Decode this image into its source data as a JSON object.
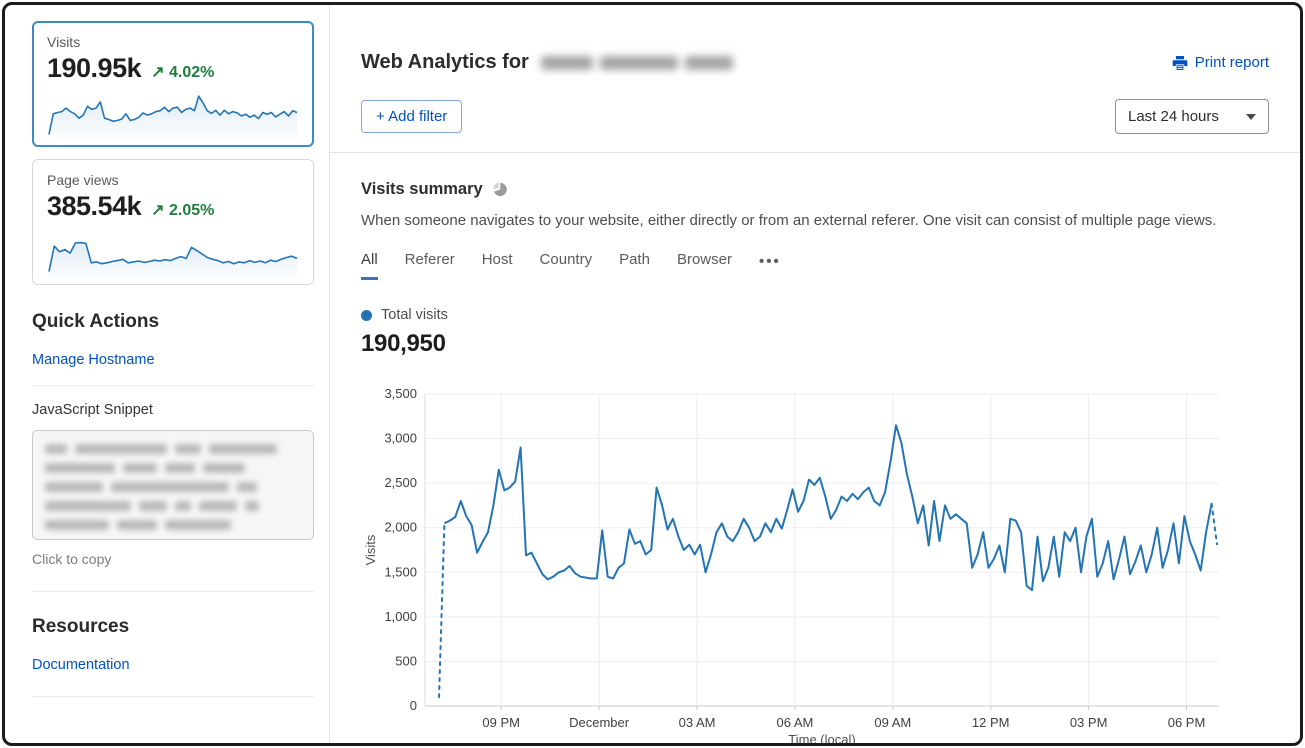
{
  "colors": {
    "accent_blue": "#0051c3",
    "chart_blue": "#2274b5",
    "trend_green": "#1f7d3d",
    "selected_card_border": "#3b8ac4"
  },
  "sidebar": {
    "cards": [
      {
        "label": "Visits",
        "value": "190.95k",
        "trend_arrow": "↗",
        "trend": "4.02%",
        "selected": true
      },
      {
        "label": "Page views",
        "value": "385.54k",
        "trend_arrow": "↗",
        "trend": "2.05%",
        "selected": false
      }
    ],
    "quick_actions": {
      "title": "Quick Actions",
      "manage_hostname_label": "Manage Hostname",
      "snippet_label": "JavaScript Snippet",
      "copy_hint": "Click to copy"
    },
    "resources": {
      "title": "Resources",
      "documentation_label": "Documentation"
    }
  },
  "header": {
    "title": "Web Analytics for",
    "print_label": "Print report",
    "add_filter_plus": "+",
    "add_filter_label": "Add filter",
    "time_range_value": "Last 24 hours"
  },
  "summary": {
    "title": "Visits summary",
    "description": "When someone navigates to your website, either directly or from an external referer. One visit can consist of multiple page views.",
    "tabs": [
      "All",
      "Referer",
      "Host",
      "Country",
      "Path",
      "Browser"
    ],
    "active_tab": "All",
    "more_label": "•••",
    "legend_label": "Total visits",
    "total_value": "190,950"
  },
  "chart_data": [
    {
      "id": "visits-timeseries",
      "type": "line",
      "title": "Total visits",
      "xlabel": "Time (local)",
      "ylabel": "Visits",
      "ylim": [
        0,
        3500
      ],
      "y_ticks": [
        0,
        500,
        1000,
        1500,
        2000,
        2500,
        3000,
        3500
      ],
      "x_tick_labels": [
        "09 PM",
        "December",
        "03 AM",
        "06 AM",
        "09 AM",
        "12 PM",
        "03 PM",
        "06 PM"
      ],
      "x_tick_first_fraction": 0.096,
      "x_tick_step_fraction": 0.1233,
      "grid": true,
      "legend_position": "top-left",
      "line_color": "#2274b5",
      "dashed_head_segments": 1,
      "dashed_tail_segments": 1,
      "values": [
        100,
        2050,
        2080,
        2120,
        2300,
        2130,
        2030,
        1720,
        1840,
        1950,
        2250,
        2650,
        2420,
        2450,
        2520,
        2900,
        1690,
        1720,
        1600,
        1480,
        1420,
        1450,
        1500,
        1520,
        1570,
        1490,
        1450,
        1440,
        1430,
        1430,
        1970,
        1450,
        1430,
        1550,
        1600,
        1980,
        1820,
        1850,
        1700,
        1750,
        2450,
        2250,
        1980,
        2100,
        1900,
        1750,
        1810,
        1700,
        1810,
        1500,
        1700,
        1950,
        2050,
        1900,
        1850,
        1950,
        2100,
        2000,
        1850,
        1900,
        2050,
        1950,
        2100,
        1990,
        2200,
        2430,
        2180,
        2300,
        2540,
        2480,
        2560,
        2350,
        2100,
        2200,
        2350,
        2300,
        2380,
        2320,
        2400,
        2450,
        2300,
        2250,
        2400,
        2750,
        3150,
        2950,
        2600,
        2350,
        2050,
        2250,
        1800,
        2300,
        1850,
        2250,
        2100,
        2150,
        2100,
        2050,
        1550,
        1700,
        1950,
        1550,
        1650,
        1800,
        1500,
        2100,
        2080,
        1950,
        1350,
        1300,
        1900,
        1400,
        1550,
        1900,
        1450,
        1950,
        1850,
        2000,
        1500,
        1900,
        2100,
        1450,
        1600,
        1850,
        1420,
        1650,
        1900,
        1480,
        1620,
        1800,
        1500,
        1700,
        2000,
        1550,
        1750,
        2050,
        1600,
        2130,
        1850,
        1700,
        1520,
        1950,
        2270,
        1815
      ]
    },
    {
      "id": "visits-sparkline",
      "type": "line",
      "title": "Visits (24h sparkline)",
      "values": [
        8,
        55,
        58,
        60,
        68,
        60,
        55,
        45,
        52,
        72,
        65,
        68,
        82,
        45,
        42,
        38,
        40,
        43,
        55,
        40,
        42,
        47,
        57,
        52,
        55,
        60,
        62,
        70,
        60,
        68,
        70,
        58,
        65,
        68,
        62,
        95,
        80,
        62,
        56,
        63,
        52,
        63,
        55,
        60,
        57,
        50,
        54,
        47,
        52,
        44,
        58,
        54,
        58,
        48,
        54,
        60,
        50,
        62,
        58
      ]
    },
    {
      "id": "pageviews-sparkline",
      "type": "line",
      "title": "Page views (24h sparkline)",
      "values": [
        10,
        68,
        55,
        60,
        52,
        75,
        76,
        74,
        30,
        32,
        28,
        30,
        33,
        35,
        38,
        30,
        32,
        34,
        31,
        33,
        36,
        34,
        37,
        35,
        40,
        44,
        40,
        65,
        58,
        50,
        42,
        38,
        35,
        30,
        33,
        28,
        32,
        30,
        35,
        31,
        34,
        30,
        36,
        33,
        38,
        42,
        45,
        40
      ]
    }
  ]
}
